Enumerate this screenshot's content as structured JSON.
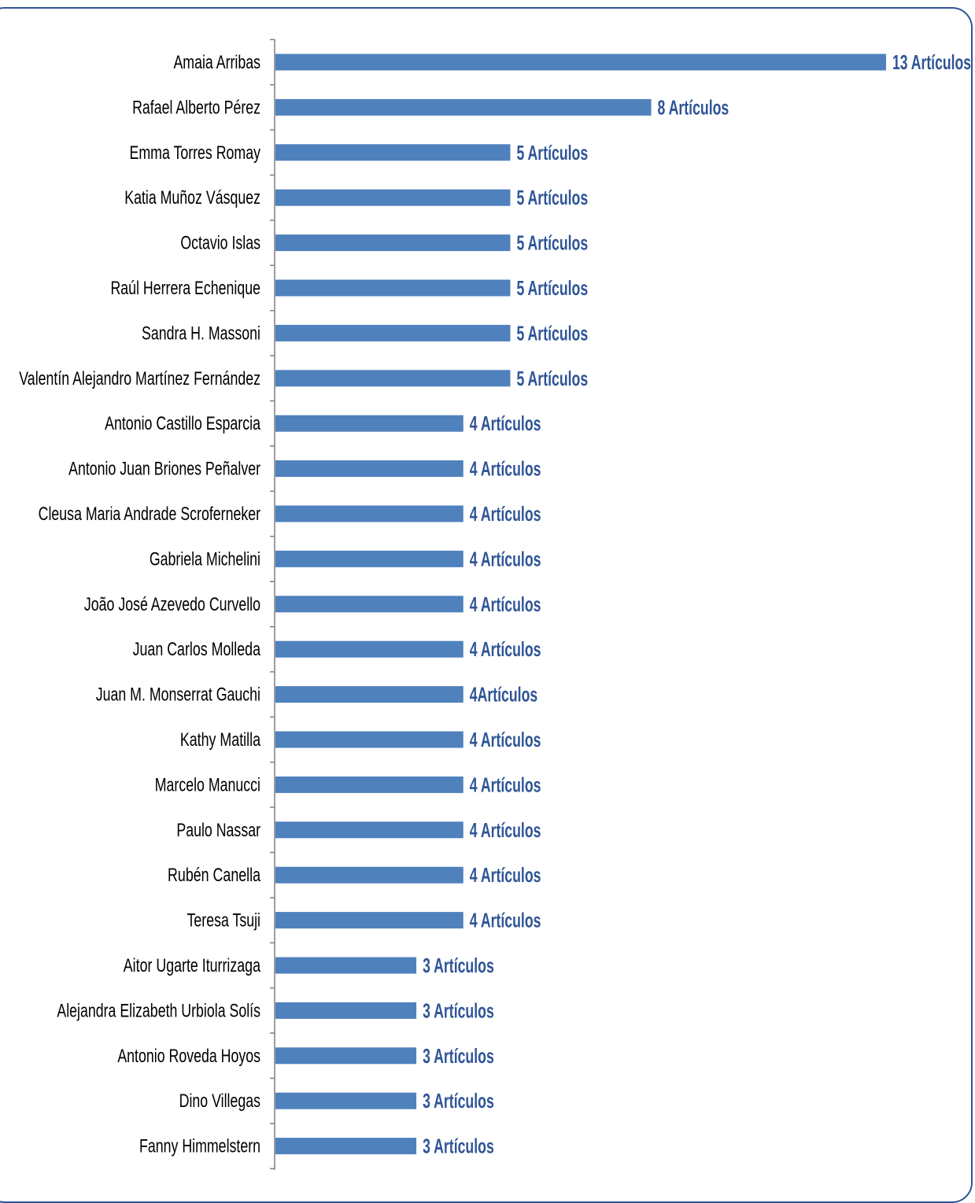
{
  "chart_data": {
    "type": "bar",
    "orientation": "horizontal",
    "title": "",
    "xlabel": "",
    "ylabel": "",
    "xlim": [
      0,
      13
    ],
    "grid": false,
    "legend": "none",
    "bar_color": "#4f81bd",
    "label_color": "#2f5597",
    "frame_color": "#2f5597",
    "categories": [
      "Amaia Arribas",
      "Rafael Alberto Pérez",
      "Emma Torres Romay",
      "Katia Muñoz Vásquez",
      "Octavio Islas",
      "Raúl Herrera Echenique",
      "Sandra H. Massoni",
      "Valentín Alejandro Martínez Fernández",
      "Antonio Castillo Esparcia",
      "Antonio Juan Briones Peñalver",
      "Cleusa Maria Andrade Scroferneker",
      "Gabriela Michelini",
      "João José Azevedo Curvello",
      "Juan Carlos Molleda",
      "Juan M. Monserrat Gauchi",
      "Kathy Matilla",
      "Marcelo Manucci",
      "Paulo Nassar",
      "Rubén Canella",
      "Teresa Tsuji",
      "Aitor Ugarte Iturrizaga",
      "Alejandra Elizabeth Urbiola Solís",
      "Antonio Roveda Hoyos",
      "Dino Villegas",
      "Fanny Himmelstern"
    ],
    "values": [
      13,
      8,
      5,
      5,
      5,
      5,
      5,
      5,
      4,
      4,
      4,
      4,
      4,
      4,
      4,
      4,
      4,
      4,
      4,
      4,
      3,
      3,
      3,
      3,
      3
    ],
    "data_labels": [
      "13 Artículos",
      "8 Artículos",
      "5 Artículos",
      "5 Artículos",
      "5 Artículos",
      "5 Artículos",
      "5 Artículos",
      "5 Artículos",
      "4 Artículos",
      "4 Artículos",
      "4 Artículos",
      "4 Artículos",
      "4 Artículos",
      "4 Artículos",
      "4Artículos",
      "4 Artículos",
      "4 Artículos",
      "4 Artículos",
      "4 Artículos",
      "4 Artículos",
      "3 Artículos",
      "3 Artículos",
      "3 Artículos",
      "3 Artículos",
      "3 Artículos"
    ]
  }
}
